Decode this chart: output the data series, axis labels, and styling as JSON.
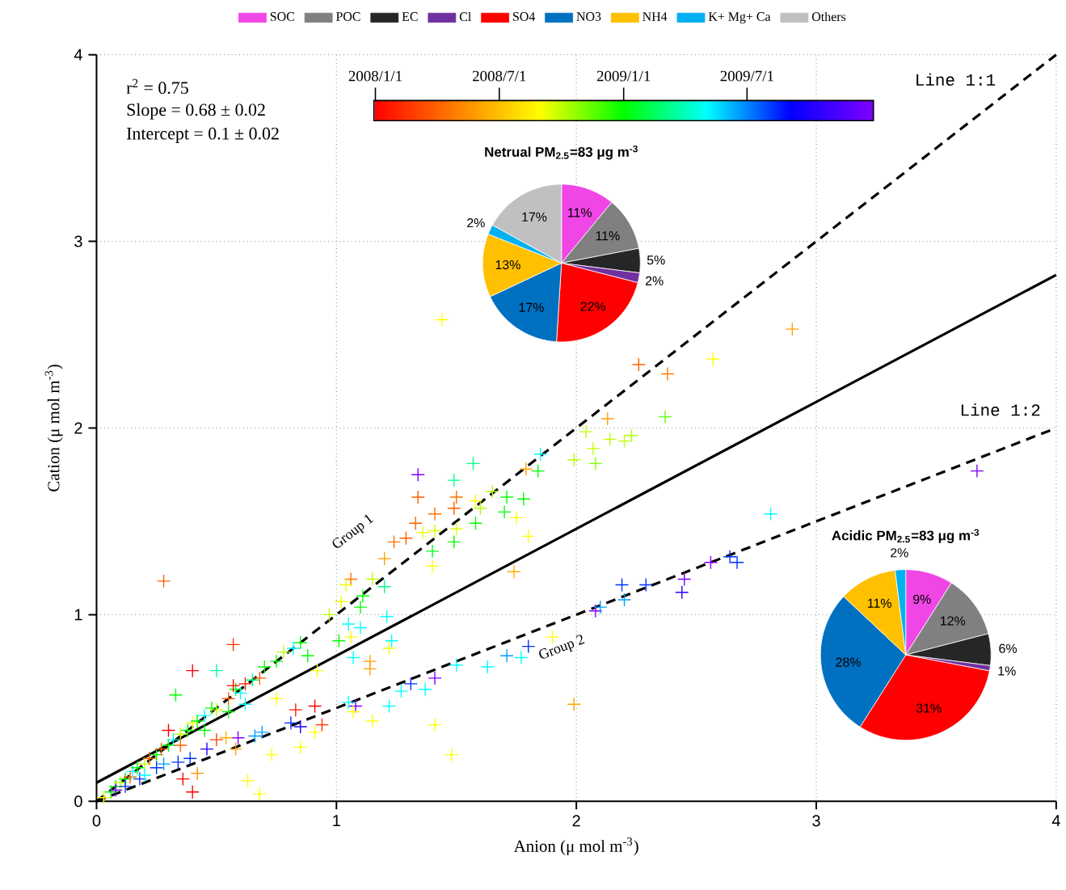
{
  "chart_data": [
    {
      "type": "scatter",
      "xlabel": "Anion (μ mol m$^{-3}$)",
      "ylabel": "Cation (μ mol m$^{-3}$)",
      "xlim": [
        0,
        4
      ],
      "ylim": [
        0,
        4
      ],
      "xticks": [
        0,
        1,
        2,
        3,
        4
      ],
      "yticks": [
        0,
        1,
        2,
        3,
        4
      ],
      "grid": true,
      "annotations": [
        "r$^{2}$ = 0.75",
        "Slope = 0.68 ± 0.02",
        "Intercept = 0.1 ± 0.02",
        "Group 1",
        "Group 2",
        "2008/1/1",
        "2008/7/1",
        "2009/1/1",
        "2009/7/1"
      ],
      "series": [
        {
          "type": "scatter",
          "marker": "cross",
          "x": [
            1.44,
            2.9,
            2.57,
            2.26,
            2.38,
            2.13,
            2.37,
            2.04,
            2.07,
            2.14,
            2.2,
            2.23,
            2.08,
            1.99,
            1.85,
            1.84,
            1.79,
            1.57,
            1.34,
            1.49,
            1.34,
            1.5,
            1.71,
            1.65,
            1.78,
            1.7,
            1.75,
            1.49,
            1.41,
            1.33,
            1.36,
            1.41,
            1.4,
            1.4,
            1.49,
            1.5,
            1.58,
            1.6,
            1.58,
            1.8,
            1.74,
            1.24,
            1.29,
            1.2,
            1.06,
            1.04,
            1.15,
            1.11,
            1.2,
            1.02,
            0.97,
            1.1,
            1.05,
            1.21,
            1.1,
            1.01,
            1.06,
            1.23,
            1.22,
            1.07,
            1.14,
            1.14,
            1.8,
            1.71,
            1.77,
            1.63,
            1.5,
            1.9,
            2.08,
            2.1,
            2.2,
            2.19,
            2.29,
            2.45,
            2.44,
            2.56,
            2.67,
            2.64,
            2.81,
            3.67,
            1.99,
            1.41,
            1.48,
            1.31,
            1.37,
            1.41,
            1.27,
            1.05,
            1.08,
            1.22,
            1.15,
            1.07,
            0.28,
            0.57,
            0.4,
            0.5,
            0.33,
            0.83,
            0.91,
            0.94,
            0.81,
            0.85,
            0.59,
            0.66,
            0.69,
            0.46,
            0.58,
            0.73,
            0.85,
            0.91,
            0.75,
            0.92,
            0.4,
            0.36,
            0.63,
            0.68,
            0.42,
            0.34,
            0.39,
            0.5,
            0.54,
            0.03,
            0.06,
            0.08,
            0.1,
            0.12,
            0.14,
            0.15,
            0.17,
            0.2,
            0.22,
            0.25,
            0.27,
            0.3,
            0.32,
            0.35,
            0.38,
            0.4,
            0.42,
            0.45,
            0.48,
            0.5,
            0.55,
            0.58,
            0.6,
            0.65,
            0.68,
            0.7,
            0.75,
            0.78,
            0.82,
            0.85,
            0.88,
            0.35,
            0.45,
            0.55,
            0.62,
            0.12,
            0.18,
            0.25,
            0.08,
            0.2,
            0.28,
            0.57,
            0.62,
            0.3
          ],
          "values": [
            2.58,
            2.53,
            2.37,
            2.34,
            2.29,
            2.05,
            2.06,
            1.98,
            1.89,
            1.94,
            1.93,
            1.96,
            1.81,
            1.83,
            1.86,
            1.77,
            1.78,
            1.81,
            1.75,
            1.72,
            1.63,
            1.63,
            1.63,
            1.66,
            1.62,
            1.55,
            1.52,
            1.57,
            1.54,
            1.49,
            1.44,
            1.45,
            1.34,
            1.26,
            1.39,
            1.46,
            1.49,
            1.57,
            1.61,
            1.42,
            1.23,
            1.39,
            1.41,
            1.3,
            1.19,
            1.16,
            1.19,
            1.1,
            1.15,
            1.07,
            1.0,
            1.04,
            0.95,
            0.99,
            0.93,
            0.86,
            0.88,
            0.86,
            0.82,
            0.77,
            0.75,
            0.71,
            0.83,
            0.78,
            0.77,
            0.72,
            0.73,
            0.88,
            1.02,
            1.04,
            1.08,
            1.16,
            1.16,
            1.19,
            1.12,
            1.28,
            1.28,
            1.31,
            1.54,
            1.77,
            0.52,
            0.41,
            0.25,
            0.63,
            0.6,
            0.66,
            0.59,
            0.53,
            0.51,
            0.51,
            0.43,
            0.48,
            1.18,
            0.84,
            0.7,
            0.7,
            0.57,
            0.49,
            0.51,
            0.41,
            0.42,
            0.4,
            0.34,
            0.35,
            0.37,
            0.28,
            0.28,
            0.25,
            0.29,
            0.37,
            0.55,
            0.7,
            0.05,
            0.12,
            0.11,
            0.04,
            0.15,
            0.21,
            0.23,
            0.33,
            0.34,
            0.02,
            0.05,
            0.08,
            0.1,
            0.12,
            0.13,
            0.16,
            0.18,
            0.2,
            0.23,
            0.25,
            0.28,
            0.3,
            0.33,
            0.36,
            0.38,
            0.42,
            0.43,
            0.46,
            0.5,
            0.49,
            0.55,
            0.6,
            0.58,
            0.65,
            0.66,
            0.72,
            0.75,
            0.8,
            0.82,
            0.85,
            0.78,
            0.3,
            0.38,
            0.48,
            0.52,
            0.08,
            0.12,
            0.18,
            0.06,
            0.14,
            0.2,
            0.62,
            0.63,
            0.38
          ],
          "colors": [
            "#ffff00",
            "#ffa000",
            "#ffff00",
            "#ff6000",
            "#ff8000",
            "#ffa000",
            "#60ff00",
            "#c0ff00",
            "#c0ff00",
            "#c0ff00",
            "#c0ff00",
            "#b0ff00",
            "#80ff00",
            "#c0ff00",
            "#00ffff",
            "#00ff00",
            "#ffa000",
            "#00ff80",
            "#8000ff",
            "#00ff90",
            "#ff6000",
            "#ff7000",
            "#00ff00",
            "#b0ff00",
            "#00ff00",
            "#00ff00",
            "#ffff00",
            "#ff6000",
            "#ff7000",
            "#ff6000",
            "#f0ff00",
            "#e0ff00",
            "#00ff20",
            "#ffff00",
            "#00ff00",
            "#e0ff00",
            "#00ff00",
            "#b0ff00",
            "#ffff00",
            "#ffff00",
            "#ffb000",
            "#ff7000",
            "#ff6000",
            "#ffa000",
            "#ff7000",
            "#f0ff00",
            "#c0ff00",
            "#00ff00",
            "#00ff80",
            "#f0ff00",
            "#c0ff00",
            "#00ff00",
            "#00ffff",
            "#00ffff",
            "#00ffff",
            "#00ff00",
            "#ffff00",
            "#00ffff",
            "#f0ff00",
            "#00ffff",
            "#ffa000",
            "#ffa000",
            "#0030ff",
            "#00a0ff",
            "#00ffff",
            "#00ffff",
            "#00ffff",
            "#ffff00",
            "#8000ff",
            "#00a0ff",
            "#00a0ff",
            "#0030ff",
            "#0030ff",
            "#8000ff",
            "#2000ff",
            "#8000ff",
            "#0030ff",
            "#0030ff",
            "#00ffff",
            "#8000ff",
            "#ffa000",
            "#ffff00",
            "#ffff00",
            "#0030ff",
            "#00ffff",
            "#8000ff",
            "#00ffff",
            "#00ffff",
            "#8000ff",
            "#00ffff",
            "#ffff00",
            "#ffff00",
            "#ff6000",
            "#ff3000",
            "#ff0000",
            "#00ffa0",
            "#00ff00",
            "#ff1a00",
            "#ff0000",
            "#ff3000",
            "#0030ff",
            "#2000ff",
            "#8000ff",
            "#00a0ff",
            "#00a0ff",
            "#2000ff",
            "#ffa000",
            "#ffff00",
            "#ffff00",
            "#ffff00",
            "#ffff00",
            "#ffff00",
            "#ff0000",
            "#ff0000",
            "#ffff00",
            "#ffff00",
            "#ff9000",
            "#0030ff",
            "#0030ff",
            "#ff4000",
            "#ffb000",
            "#ffff00",
            "#00ff00",
            "#00ff00",
            "#c0ff00",
            "#00ff00",
            "#ff6000",
            "#00ffff",
            "#00ff00",
            "#c0ff00",
            "#ff6000",
            "#00ff00",
            "#ff6000",
            "#00ff00",
            "#00ffff",
            "#c0ff00",
            "#00ff00",
            "#ffff00",
            "#00ff00",
            "#00ffff",
            "#00ff00",
            "#c0ff00",
            "#ff6000",
            "#00ff00",
            "#00ffff",
            "#00ff80",
            "#ff6000",
            "#00ff00",
            "#00ff00",
            "#c0ff00",
            "#00ffff",
            "#00ff00",
            "#00ff00",
            "#ff6000",
            "#00ff00",
            "#00ff00",
            "#00ffff",
            "#0030ff",
            "#0030ff",
            "#0030ff",
            "#8000ff",
            "#00ffff",
            "#00a0ff",
            "#ff0000",
            "#ff1a00",
            "#ff0000"
          ]
        },
        {
          "type": "line",
          "color": "#000000",
          "x": [
            0,
            4
          ],
          "values": [
            0.1,
            2.82
          ]
        },
        {
          "type": "line",
          "name": "Line 1:1",
          "color": "#000000",
          "line_style": "dashed",
          "x": [
            0,
            4
          ],
          "values": [
            0,
            4
          ]
        },
        {
          "type": "line",
          "name": "Line 1:2",
          "color": "#000000",
          "line_style": "dashed",
          "x": [
            0,
            4
          ],
          "values": [
            0,
            2
          ]
        }
      ]
    },
    {
      "type": "pie",
      "title": "Netrual PM$_{2.5}$=83 μg m$^{-3}$",
      "legend": "top",
      "categories": [
        "SOC",
        "POC",
        "EC",
        "Cl",
        "SO4",
        "NO3",
        "NH4",
        "K+ Mg+ Ca",
        "Others"
      ],
      "values": [
        11,
        11,
        5,
        2,
        22,
        17,
        13,
        2,
        17
      ],
      "colors": [
        "#f046e6",
        "#808080",
        "#262626",
        "#7030a0",
        "#ff0000",
        "#0070c0",
        "#ffc000",
        "#00b0f0",
        "#c0c0c0"
      ],
      "value_labels": [
        "11%",
        "11%",
        "5%",
        "2%",
        "22%",
        "17%",
        "13%",
        "2%",
        "17%"
      ]
    },
    {
      "type": "pie",
      "title": "Acidic PM$_{2.5}$=83 μg m$^{-3}$",
      "categories": [
        null,
        null,
        null,
        null,
        null,
        null,
        null,
        null,
        null
      ],
      "values": [
        9,
        12,
        6,
        1,
        31,
        28,
        11,
        2,
        0
      ],
      "colors": [
        "#f046e6",
        "#808080",
        "#262626",
        "#7030a0",
        "#ff0000",
        "#0070c0",
        "#ffc000",
        "#00b0f0",
        "#c0c0c0"
      ],
      "value_labels": [
        "9%",
        "12%",
        "6%",
        "1%",
        "31%",
        "28%",
        "11%",
        "2%",
        null
      ]
    }
  ]
}
